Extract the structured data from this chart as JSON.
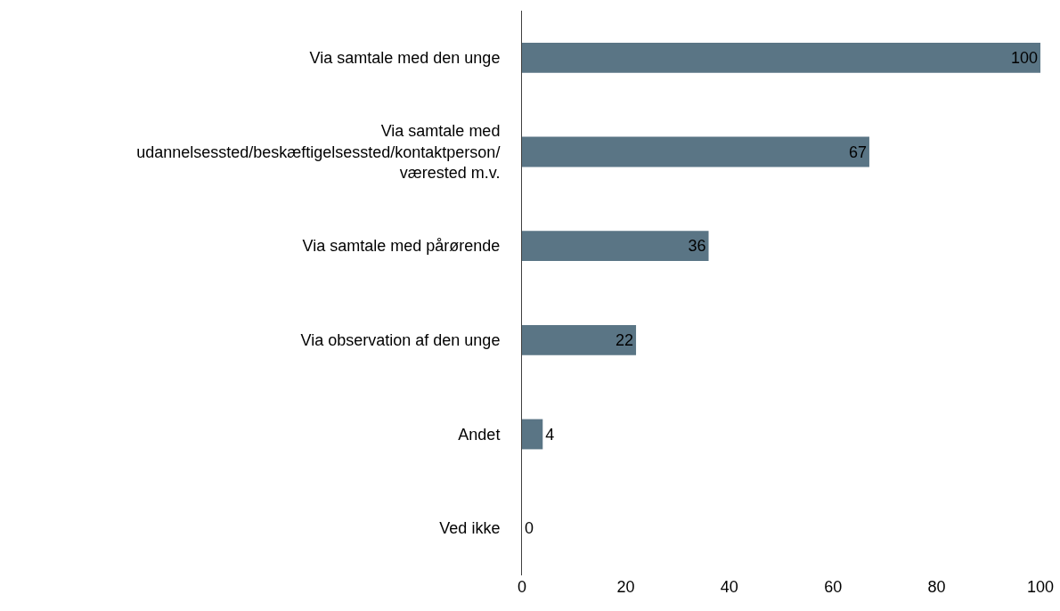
{
  "chart_data": {
    "type": "bar",
    "orientation": "horizontal",
    "categories": [
      "Via samtale med den unge",
      "Via samtale med\nudannelsessted/beskæftigelsessted/kontaktperson/\nværested m.v.",
      "Via samtale med pårørende",
      "Via observation af den unge",
      "Andet",
      "Ved ikke"
    ],
    "values": [
      100,
      67,
      36,
      22,
      4,
      0
    ],
    "color": "#5a7585",
    "xlim": [
      0,
      100
    ],
    "xticks": [
      0,
      20,
      40,
      60,
      80,
      100
    ],
    "data_labels": true
  }
}
